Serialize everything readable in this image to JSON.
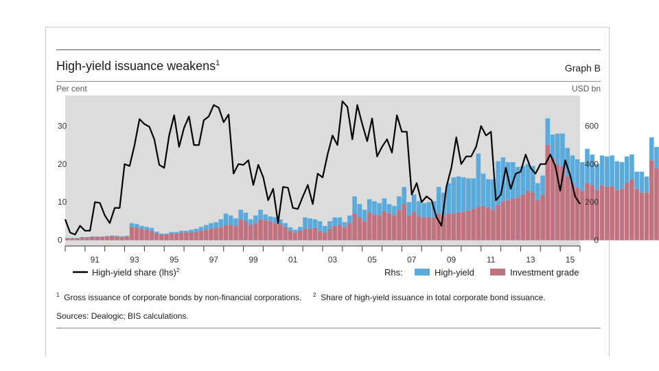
{
  "header": {
    "title": "High-yield issuance weakens",
    "title_sup": "1",
    "graph_label": "Graph B",
    "left_unit": "Per cent",
    "right_unit": "USD bn"
  },
  "legend": {
    "line_label": "High-yield share (lhs)",
    "line_sup": "2",
    "rhs_prefix": "Rhs:",
    "hy_label": "High-yield",
    "ig_label": "Investment grade"
  },
  "colors": {
    "plot_bg": "#dcdcdc",
    "high_yield": "#5aaadc",
    "investment_grade": "#c0727f",
    "line": "#000000"
  },
  "footnotes": {
    "n1_num": "1",
    "n1_text": "Gross issuance of corporate bonds by non-financial corporations.",
    "n2_num": "2",
    "n2_text": "Share of high-yield issuance in total corporate bond issuance.",
    "sources": "Sources: Dealogic; BIS calculations."
  },
  "chart_data": {
    "type": "bar",
    "title": "High-yield issuance weakens",
    "x_start": 1990.0,
    "x_end": 2016.0,
    "step": 0.25,
    "x_ticks": [
      {
        "x": 1991.5,
        "label": "91"
      },
      {
        "x": 1993.5,
        "label": "93"
      },
      {
        "x": 1995.5,
        "label": "95"
      },
      {
        "x": 1997.5,
        "label": "97"
      },
      {
        "x": 1999.5,
        "label": "99"
      },
      {
        "x": 2001.5,
        "label": "01"
      },
      {
        "x": 2003.5,
        "label": "03"
      },
      {
        "x": 2005.5,
        "label": "05"
      },
      {
        "x": 2007.5,
        "label": "07"
      },
      {
        "x": 2009.5,
        "label": "09"
      },
      {
        "x": 2011.5,
        "label": "11"
      },
      {
        "x": 2013.5,
        "label": "13"
      },
      {
        "x": 2015.5,
        "label": "15"
      }
    ],
    "y_left": {
      "label": "Per cent",
      "range": [
        -1.5,
        38
      ],
      "ticks": [
        0,
        10,
        20,
        30
      ]
    },
    "y_right": {
      "label": "USD bn",
      "range": [
        -30,
        760
      ],
      "ticks": [
        0,
        200,
        400,
        600
      ]
    },
    "series": [
      {
        "name": "Investment grade",
        "axis": "right",
        "values": [
          10,
          10,
          10,
          15,
          15,
          18,
          18,
          18,
          20,
          22,
          20,
          18,
          20,
          70,
          65,
          60,
          55,
          50,
          35,
          30,
          30,
          35,
          35,
          40,
          40,
          40,
          45,
          50,
          55,
          60,
          65,
          70,
          80,
          80,
          75,
          110,
          100,
          80,
          90,
          110,
          105,
          100,
          90,
          85,
          70,
          50,
          40,
          50,
          60,
          60,
          65,
          50,
          40,
          60,
          75,
          80,
          70,
          90,
          140,
          120,
          100,
          145,
          135,
          130,
          150,
          140,
          130,
          160,
          190,
          130,
          150,
          125,
          120,
          120,
          120,
          140,
          130,
          140,
          140,
          145,
          150,
          155,
          165,
          175,
          180,
          170,
          160,
          185,
          205,
          210,
          220,
          225,
          240,
          260,
          250,
          210,
          240,
          500,
          430,
          400,
          390,
          335,
          300,
          275,
          260,
          300,
          290,
          265,
          290,
          280,
          285,
          265,
          270,
          300,
          320,
          270,
          250,
          250,
          420,
          380,
          450,
          460,
          480,
          460,
          430,
          420,
          450,
          410,
          380,
          470,
          500,
          530,
          430,
          405,
          395
        ]
      },
      {
        "name": "High-yield",
        "axis": "right",
        "values": [
          2,
          2,
          2,
          2,
          2,
          2,
          2,
          2,
          2,
          3,
          3,
          3,
          3,
          20,
          20,
          15,
          15,
          15,
          10,
          5,
          5,
          8,
          8,
          10,
          10,
          15,
          15,
          20,
          25,
          30,
          30,
          40,
          60,
          50,
          40,
          50,
          45,
          30,
          40,
          50,
          30,
          25,
          30,
          25,
          20,
          18,
          15,
          20,
          60,
          55,
          45,
          50,
          35,
          40,
          45,
          40,
          25,
          40,
          90,
          70,
          60,
          70,
          70,
          65,
          70,
          50,
          50,
          70,
          90,
          70,
          90,
          80,
          75,
          80,
          85,
          140,
          120,
          160,
          190,
          190,
          180,
          170,
          160,
          280,
          170,
          150,
          160,
          230,
          230,
          200,
          190,
          160,
          150,
          140,
          140,
          90,
          100,
          140,
          125,
          160,
          170,
          150,
          145,
          150,
          150,
          180,
          160,
          135,
          155,
          160,
          160,
          150,
          140,
          140,
          130,
          90,
          110,
          85,
          120,
          110,
          120,
          120,
          160,
          170,
          125,
          110,
          105,
          100,
          190,
          130,
          100,
          110,
          100,
          82,
          85
        ]
      },
      {
        "name": "High-yield share (lhs)",
        "axis": "left",
        "points": [
          [
            1990.0,
            5.5
          ],
          [
            1990.25,
            2
          ],
          [
            1990.5,
            1.5
          ],
          [
            1990.75,
            3.8
          ],
          [
            1991.0,
            2.5
          ],
          [
            1991.25,
            2.5
          ],
          [
            1991.5,
            10
          ],
          [
            1991.75,
            9.8
          ],
          [
            1992.0,
            6.5
          ],
          [
            1992.25,
            4.5
          ],
          [
            1992.5,
            8.5
          ],
          [
            1992.75,
            8.5
          ],
          [
            1993.0,
            20
          ],
          [
            1993.25,
            19.5
          ],
          [
            1993.5,
            25
          ],
          [
            1993.75,
            31.8
          ],
          [
            1994.0,
            30.5
          ],
          [
            1994.25,
            29.8
          ],
          [
            1994.5,
            26.5
          ],
          [
            1994.75,
            19.8
          ],
          [
            1995.0,
            19
          ],
          [
            1995.25,
            27.5
          ],
          [
            1995.5,
            32.8
          ],
          [
            1995.75,
            24.5
          ],
          [
            1996.0,
            29.5
          ],
          [
            1996.25,
            32.5
          ],
          [
            1996.5,
            25
          ],
          [
            1996.75,
            25
          ],
          [
            1997.0,
            31.5
          ],
          [
            1997.25,
            32.5
          ],
          [
            1997.5,
            35.5
          ],
          [
            1997.75,
            34.8
          ],
          [
            1998.0,
            31
          ],
          [
            1998.25,
            33
          ],
          [
            1998.5,
            17.5
          ],
          [
            1998.75,
            20
          ],
          [
            1999.0,
            19.8
          ],
          [
            1999.25,
            21
          ],
          [
            1999.5,
            14.5
          ],
          [
            1999.75,
            19.8
          ],
          [
            2000.0,
            16.5
          ],
          [
            2000.25,
            10.5
          ],
          [
            2000.5,
            13.5
          ],
          [
            2000.75,
            4.5
          ],
          [
            2001.0,
            14
          ],
          [
            2001.25,
            13.8
          ],
          [
            2001.5,
            8.5
          ],
          [
            2001.75,
            8.2
          ],
          [
            2002.0,
            11.5
          ],
          [
            2002.25,
            14.5
          ],
          [
            2002.5,
            9.5
          ],
          [
            2002.75,
            17.5
          ],
          [
            2003.0,
            16.5
          ],
          [
            2003.25,
            22.5
          ],
          [
            2003.5,
            27.5
          ],
          [
            2003.75,
            25
          ],
          [
            2004.0,
            36.5
          ],
          [
            2004.25,
            35
          ],
          [
            2004.5,
            26.5
          ],
          [
            2004.75,
            35.5
          ],
          [
            2005.0,
            30.5
          ],
          [
            2005.25,
            26
          ],
          [
            2005.5,
            32
          ],
          [
            2005.75,
            22
          ],
          [
            2006.0,
            24.5
          ],
          [
            2006.25,
            26.5
          ],
          [
            2006.5,
            23
          ],
          [
            2006.75,
            32.8
          ],
          [
            2007.0,
            28.5
          ],
          [
            2007.25,
            28.5
          ],
          [
            2007.5,
            12
          ],
          [
            2007.75,
            15
          ],
          [
            2008.0,
            10
          ],
          [
            2008.25,
            11.5
          ],
          [
            2008.5,
            10.5
          ],
          [
            2008.75,
            6
          ],
          [
            2009.0,
            3.8
          ],
          [
            2009.25,
            14
          ],
          [
            2009.5,
            19
          ],
          [
            2009.75,
            27
          ],
          [
            2010.0,
            20
          ],
          [
            2010.25,
            22
          ],
          [
            2010.5,
            22
          ],
          [
            2010.75,
            24.5
          ],
          [
            2011.0,
            30
          ],
          [
            2011.25,
            27.5
          ],
          [
            2011.5,
            28.5
          ],
          [
            2011.75,
            10.5
          ],
          [
            2012.0,
            12
          ],
          [
            2012.25,
            19
          ],
          [
            2012.5,
            13.5
          ],
          [
            2012.75,
            17.5
          ],
          [
            2013.0,
            18
          ],
          [
            2013.25,
            22.5
          ],
          [
            2013.5,
            19
          ],
          [
            2013.75,
            17.5
          ],
          [
            2014.0,
            20
          ],
          [
            2014.25,
            20
          ],
          [
            2014.5,
            22.5
          ],
          [
            2014.75,
            19.5
          ],
          [
            2015.0,
            13
          ],
          [
            2015.25,
            21
          ],
          [
            2015.5,
            17
          ],
          [
            2015.75,
            11.5
          ],
          [
            2016.0,
            9.5
          ]
        ]
      }
    ]
  }
}
